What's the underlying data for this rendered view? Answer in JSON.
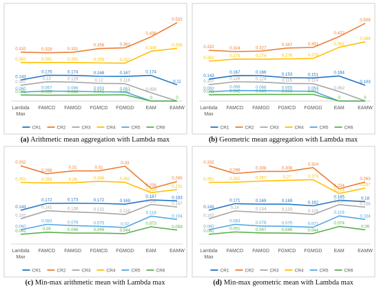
{
  "categories": [
    "Lambda Max",
    "FAMCD",
    "FAMGD",
    "FGMCD",
    "FGMGD",
    "EAM",
    "EAMW"
  ],
  "series_meta": [
    {
      "name": "CR1",
      "color": "#1f73c4"
    },
    {
      "name": "CR2",
      "color": "#ed7d31"
    },
    {
      "name": "CR3",
      "color": "#a5a5a5"
    },
    {
      "name": "CR4",
      "color": "#ffc000"
    },
    {
      "name": "CR5",
      "color": "#4ea6e2"
    },
    {
      "name": "CR6",
      "color": "#58b04a"
    }
  ],
  "panels": [
    {
      "letter": "(a)",
      "caption": "Arithmetic mean aggregation with Lambda max"
    },
    {
      "letter": "(b)",
      "caption": "Geometric mean aggregation with Lambda max"
    },
    {
      "letter": "(c)",
      "caption": "Min-max arithmetic mean with Lambda max"
    },
    {
      "letter": "(d)",
      "caption": "Min-max geometric mean with Lambda max"
    }
  ],
  "chart_data": [
    {
      "type": "line",
      "title": "",
      "categories": [
        "Lambda Max",
        "FAMCD",
        "FAMGD",
        "FGMCD",
        "FGMGD",
        "EAM",
        "EAMW"
      ],
      "ylim": [
        0,
        0.56
      ],
      "grid": false,
      "legend": "bottom",
      "series": [
        {
          "name": "CR1",
          "values": [
            0.143,
            0.175,
            0.174,
            0.168,
            0.167,
            0.174,
            0.11
          ],
          "labels": [
            "0.143",
            "0.175",
            "0.174",
            "0.168",
            "0.167",
            "0.174",
            "0.11"
          ]
        },
        {
          "name": "CR2",
          "values": [
            0.332,
            0.328,
            0.331,
            0.356,
            0.361,
            0.436,
            0.532
          ],
          "labels": [
            "0.332",
            "0.328",
            "0.331",
            "0.356",
            "0.361",
            "0.436",
            "0.532"
          ]
        },
        {
          "name": "CR3",
          "values": [
            0.107,
            0.13,
            0.129,
            0.12,
            0.118,
            0.056,
            0
          ],
          "labels": [
            "0.107",
            "0.13",
            "0.129",
            "0.12",
            "0.118",
            "0.056",
            ""
          ]
        },
        {
          "name": "CR4",
          "values": [
            0.261,
            0.261,
            0.261,
            0.259,
            0.257,
            0.338,
            0.358
          ],
          "labels": [
            "0.261",
            "0.261",
            "0.261",
            "0.259",
            "0.257",
            "0.338",
            "0.358"
          ]
        },
        {
          "name": "CR5",
          "values": [
            0.06,
            0.067,
            0.066,
            0.063,
            0.061,
            0,
            0
          ],
          "labels": [
            "0.060",
            "0.067",
            "0.066",
            "0.063",
            "0.061",
            "",
            ""
          ]
        },
        {
          "name": "CR6",
          "values": [
            0.041,
            0.039,
            0.04,
            0.041,
            0.042,
            0,
            0
          ],
          "labels": [
            "0.041",
            "0.039",
            "0.040",
            "0.041",
            "0.042",
            "0",
            "0"
          ]
        }
      ]
    },
    {
      "type": "line",
      "title": "",
      "categories": [
        "Lambda Max",
        "FAMCD",
        "FAMGD",
        "FGMCD",
        "FGMGD",
        "EAM",
        "EAMW"
      ],
      "ylim": [
        0,
        0.54
      ],
      "grid": false,
      "legend": "bottom",
      "series": [
        {
          "name": "CR1",
          "values": [
            0.143,
            0.167,
            0.166,
            0.153,
            0.151,
            0.164,
            0.103
          ],
          "labels": [
            "0.143",
            "0.167",
            "0.166",
            "0.153",
            "0.151",
            "0.164",
            "0.103"
          ]
        },
        {
          "name": "CR2",
          "values": [
            0.332,
            0.324,
            0.327,
            0.347,
            0.351,
            0.422,
            0.509
          ],
          "labels": [
            "0.332",
            "0.324",
            "0.327",
            "0.347",
            "0.351",
            "0.422",
            "0.509"
          ]
        },
        {
          "name": "CR3",
          "values": [
            0.107,
            0.126,
            0.124,
            0.115,
            0.114,
            0.062,
            0
          ],
          "labels": [
            "0.107",
            "0.126",
            "0.124",
            "0.115",
            "0.114",
            "0.062",
            ""
          ]
        },
        {
          "name": "CR4",
          "values": [
            0.261,
            0.275,
            0.274,
            0.276,
            0.278,
            0.352,
            0.388
          ],
          "labels": [
            "0.261",
            "0.275",
            "0.274",
            "0.276",
            "0.278",
            "0.352",
            "0.388"
          ]
        },
        {
          "name": "CR5",
          "values": [
            0.06,
            0.069,
            0.068,
            0.065,
            0.064,
            0,
            0
          ],
          "labels": [
            "0.060",
            "0.069",
            "0.068",
            "0.065",
            "0.064",
            "",
            ""
          ]
        },
        {
          "name": "CR6",
          "values": [
            0.041,
            0.042,
            0.043,
            0.043,
            0.043,
            0,
            0
          ],
          "labels": [
            "0.041",
            "0.042",
            "0.043",
            "0.043",
            "0.043",
            "0",
            "0"
          ]
        }
      ]
    },
    {
      "type": "line",
      "title": "",
      "categories": [
        "Lambda Max",
        "FAMCD",
        "FAMGD",
        "FGMCD",
        "FGMGD",
        "EAM",
        "EAMW"
      ],
      "ylim": [
        0,
        0.35
      ],
      "grid": false,
      "legend": "bottom",
      "series": [
        {
          "name": "CR1",
          "values": [
            0.143,
            0.172,
            0.173,
            0.172,
            0.169,
            0.187,
            0.183
          ],
          "labels": [
            "0.143",
            "0.172",
            "0.173",
            "0.172",
            "0.169",
            "0.187",
            "0.183"
          ]
        },
        {
          "name": "CR2",
          "values": [
            0.332,
            0.298,
            0.31,
            0.31,
            0.33,
            0.235,
            0.265
          ],
          "labels": [
            "0.332",
            "0.298",
            "0.31",
            "0.31",
            "0.33",
            "0.235",
            "0.265"
          ]
        },
        {
          "name": "CR3",
          "values": [
            0.107,
            0.141,
            0.136,
            0.132,
            0.125,
            0.168,
            0.157
          ],
          "labels": [
            "0.107",
            "0.141",
            "0.136",
            "0.132",
            "0.125",
            "0.168",
            "0.157"
          ]
        },
        {
          "name": "CR4",
          "values": [
            0.261,
            0.259,
            0.26,
            0.266,
            0.262,
            0.218,
            0.231
          ],
          "labels": [
            "0.261",
            "0.259",
            "0.26",
            "0.266",
            "0.262",
            "0.218",
            "0.231"
          ]
        },
        {
          "name": "CR5",
          "values": [
            0.06,
            0.083,
            0.078,
            0.075,
            0.07,
            0.118,
            0.104
          ],
          "labels": [
            "0.060",
            "0.083",
            "0.078",
            "0.075",
            "0.07",
            "0.118",
            "0.104"
          ]
        },
        {
          "name": "CR6",
          "values": [
            0.041,
            0.05,
            0.046,
            0.046,
            0.044,
            0.073,
            0.059
          ],
          "labels": [
            "0.041",
            "0.05",
            "0.046",
            "0.046",
            "0.044",
            "0.073",
            "0.059"
          ]
        }
      ]
    },
    {
      "type": "line",
      "title": "",
      "categories": [
        "Lambda Max",
        "FAMCD",
        "FAMGD",
        "FGMCD",
        "FGMGD",
        "EAM",
        "EAMW"
      ],
      "ylim": [
        0,
        0.35
      ],
      "grid": false,
      "legend": "bottom",
      "series": [
        {
          "name": "CR1",
          "values": [
            0.143,
            0.171,
            0.169,
            0.169,
            0.162,
            0.185,
            0.18
          ],
          "labels": [
            "0.143",
            "0.171",
            "0.169",
            "0.169",
            "0.162",
            "0.185",
            "0.18"
          ]
        },
        {
          "name": "CR2",
          "values": [
            0.332,
            0.299,
            0.308,
            0.308,
            0.324,
            0.234,
            0.263
          ],
          "labels": [
            "0.332",
            "0.299",
            "0.308",
            "0.308",
            "0.324",
            "0.234",
            "0.263"
          ]
        },
        {
          "name": "CR3",
          "values": [
            0.107,
            0.14,
            0.134,
            0.133,
            0.125,
            0.167,
            0.156
          ],
          "labels": [
            "0.107",
            "0.14",
            "0.134",
            "0.133",
            "0.125",
            "0.167",
            "0.156"
          ]
        },
        {
          "name": "CR4",
          "values": [
            0.261,
            0.262,
            0.267,
            0.27,
            0.273,
            0.214,
            0.237
          ],
          "labels": [
            "0.261",
            "0.262",
            "0.267",
            "0.27",
            "0.273",
            "0.214",
            "0.237"
          ]
        },
        {
          "name": "CR5",
          "values": [
            0.06,
            0.083,
            0.076,
            0.075,
            0.071,
            0.119,
            0.104
          ],
          "labels": [
            "0.060",
            "0.083",
            "0.076",
            "0.075",
            "0.071",
            "0.119",
            "0.104"
          ]
        },
        {
          "name": "CR6",
          "values": [
            0.041,
            0.051,
            0.047,
            0.046,
            0.044,
            0.074,
            0.06
          ],
          "labels": [
            "0.041",
            "0.051",
            "0.047",
            "0.046",
            "0.044",
            "0.074",
            "0.06"
          ]
        }
      ]
    }
  ]
}
